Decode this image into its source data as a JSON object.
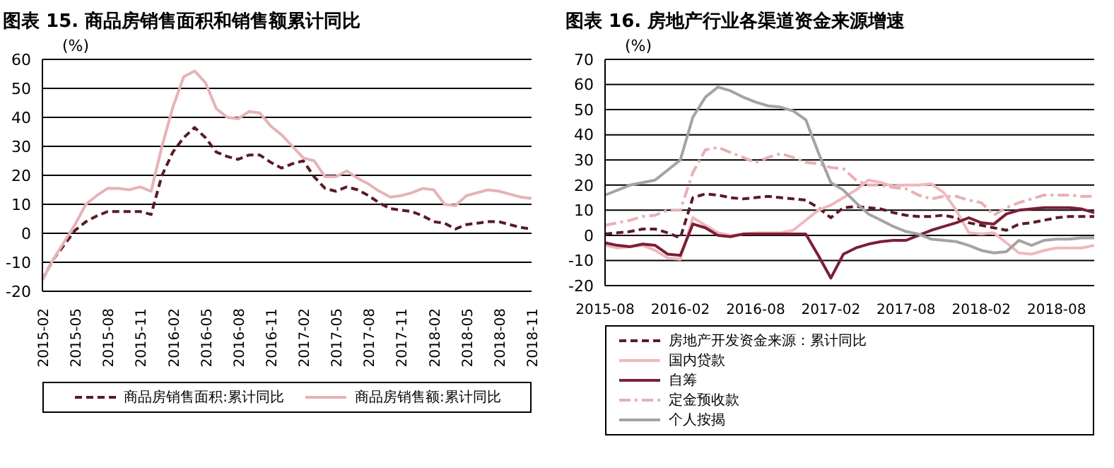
{
  "chart_data": [
    {
      "type": "line",
      "title": "图表 15. 商品房销售面积和销售额累计同比",
      "ylabel": "(%)",
      "categories": [
        "2015-02",
        null,
        null,
        "2015-05",
        null,
        null,
        "2015-08",
        null,
        null,
        "2015-11",
        null,
        null,
        "2016-02",
        null,
        null,
        "2016-05",
        null,
        null,
        "2016-08",
        null,
        null,
        "2016-11",
        null,
        null,
        "2017-02",
        null,
        null,
        "2017-05",
        null,
        null,
        "2017-08",
        null,
        null,
        "2017-11",
        null,
        null,
        "2018-02",
        null,
        null,
        "2018-05",
        null,
        null,
        "2018-08",
        null,
        null,
        "2018-11"
      ],
      "series": [
        {
          "name": "商品房销售面积:累计同比",
          "color": "#5a1a2a",
          "line_style": "dashed",
          "values": [
            -16,
            -9,
            -4,
            1,
            4,
            6,
            7.5,
            7.5,
            7.5,
            7.5,
            6.5,
            20,
            28,
            33,
            36.5,
            33,
            28,
            26.5,
            25.5,
            27,
            27,
            24.5,
            22.5,
            24,
            25,
            19.5,
            15.5,
            14.5,
            16,
            15,
            13,
            10.5,
            8.5,
            8,
            7.5,
            6,
            4,
            3.5,
            1.5,
            3,
            3.5,
            4,
            4,
            3,
            2,
            1.5
          ]
        },
        {
          "name": "商品房销售额:累计同比",
          "color": "#e6b3b7",
          "line_style": "solid",
          "values": [
            -16,
            -9,
            -3,
            3,
            10,
            13,
            15.5,
            15.5,
            15,
            16,
            14.5,
            30,
            43.5,
            54,
            56,
            52,
            43,
            40,
            39.5,
            42,
            41.5,
            37,
            34,
            30,
            26,
            25,
            19.5,
            19.5,
            21.5,
            19,
            17,
            14.5,
            12.5,
            13,
            14,
            15.5,
            15,
            10,
            9.5,
            13,
            14,
            15,
            14.5,
            13.5,
            12.5,
            12
          ]
        }
      ],
      "ylim": [
        -20,
        60
      ],
      "yticks": [
        -20,
        -10,
        0,
        10,
        20,
        30,
        40,
        50,
        60
      ],
      "grid": "y",
      "legend": "bottom"
    },
    {
      "type": "line",
      "title": "图表 16. 房地产行业各渠道资金来源增速",
      "ylabel": "(%)",
      "categories": [
        "2015-08",
        null,
        null,
        null,
        null,
        null,
        "2016-02",
        null,
        null,
        null,
        null,
        null,
        "2016-08",
        null,
        null,
        null,
        null,
        null,
        "2017-02",
        null,
        null,
        null,
        null,
        null,
        "2017-08",
        null,
        null,
        null,
        null,
        null,
        "2018-02",
        null,
        null,
        null,
        null,
        null,
        "2018-08",
        null,
        null,
        null
      ],
      "series": [
        {
          "name": "房地产开发资金来源：累计同比",
          "color": "#5a1a2a",
          "line_style": "dashed",
          "values": [
            0.5,
            1,
            1.5,
            2.5,
            2.5,
            1,
            -1,
            15,
            16.5,
            16,
            15,
            14.5,
            15,
            15.5,
            15,
            14.5,
            14,
            11,
            7,
            11,
            11.5,
            11,
            10.5,
            9,
            8,
            7.5,
            7.5,
            8,
            7,
            5,
            4,
            3,
            2,
            4.5,
            5,
            6,
            7,
            7.5,
            7.5,
            7.5
          ]
        },
        {
          "name": "国内贷款",
          "color": "#f0b8bc",
          "line_style": "solid",
          "values": [
            -4,
            -5,
            -4.5,
            -4,
            -6,
            -9,
            -9.5,
            7,
            4,
            1,
            0,
            0.5,
            1,
            1,
            1,
            2,
            6,
            10,
            12,
            15,
            18,
            22,
            21,
            19.5,
            20,
            20,
            20.5,
            17,
            10,
            1,
            0.5,
            1,
            -3,
            -7,
            -7.5,
            -6,
            -5,
            -5,
            -5,
            -4
          ]
        },
        {
          "name": "自筹",
          "color": "#7a1f35",
          "line_style": "solid",
          "values": [
            -3,
            -4,
            -4.5,
            -3.5,
            -4,
            -7.5,
            -8,
            4.5,
            3,
            0,
            -0.5,
            0.5,
            0.5,
            0.5,
            0.5,
            0.5,
            0.5,
            -8,
            -17,
            -7.5,
            -5,
            -3.5,
            -2.5,
            -2,
            -2,
            0,
            2,
            3.5,
            5,
            7,
            5,
            4.5,
            8.5,
            10,
            10.5,
            11,
            11,
            11,
            10.5,
            9
          ]
        },
        {
          "name": "定金预收款",
          "color": "#e8b0b4",
          "line_style": "dashdot",
          "values": [
            4,
            5,
            6,
            7.5,
            8,
            10,
            10,
            25,
            34,
            35,
            33,
            31,
            29,
            31,
            32.5,
            31,
            29,
            28.5,
            27,
            26.5,
            22,
            20,
            20,
            19,
            18.5,
            16,
            14.5,
            15.5,
            15.5,
            14,
            13,
            8,
            11,
            13,
            14.5,
            16,
            16,
            16,
            15.5,
            15.5
          ]
        },
        {
          "name": "个人按揭",
          "color": "#a3a3a3",
          "line_style": "solid",
          "values": [
            16,
            18,
            20,
            21,
            22,
            26,
            30,
            47,
            55,
            59,
            57.5,
            55,
            53,
            51.5,
            51,
            49.5,
            46,
            33,
            21,
            18,
            13,
            8.5,
            6,
            3.5,
            1.5,
            0.5,
            -1.5,
            -2,
            -2.5,
            -4,
            -6,
            -7,
            -6.5,
            -2,
            -4,
            -2,
            -1.5,
            -1.5,
            -1,
            -1
          ]
        }
      ],
      "ylim": [
        -20,
        70
      ],
      "yticks": [
        -20,
        -10,
        0,
        10,
        20,
        30,
        40,
        50,
        60,
        70
      ],
      "grid": "y",
      "legend": "bottom"
    }
  ]
}
